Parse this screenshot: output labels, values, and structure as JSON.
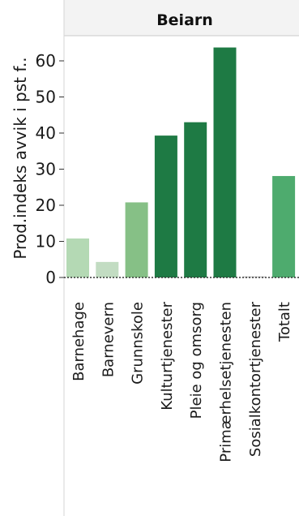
{
  "chart_data": {
    "type": "bar",
    "title": "Beiarn",
    "xlabel": "",
    "ylabel": "Prod.indeks avvik i pst f..",
    "ylim": [
      -3,
      68
    ],
    "yticks": [
      0,
      10,
      20,
      30,
      40,
      50,
      60
    ],
    "grid": false,
    "categories": [
      "Barnehage",
      "Barnevern",
      "Grunnskole",
      "Kulturtjenester",
      "Pleie og omsorg",
      "Primærhelsetjenesten",
      "Sosialkontortjenester",
      "Totalt"
    ],
    "values": [
      10.8,
      4.3,
      20.8,
      39.3,
      43.0,
      63.7,
      0.3,
      28.1
    ],
    "colors": [
      "#b4d9b4",
      "#c2dcc2",
      "#86c086",
      "#1e7a44",
      "#1e7a44",
      "#1e7a44",
      "#c8c8c8",
      "#4eab6e"
    ]
  }
}
